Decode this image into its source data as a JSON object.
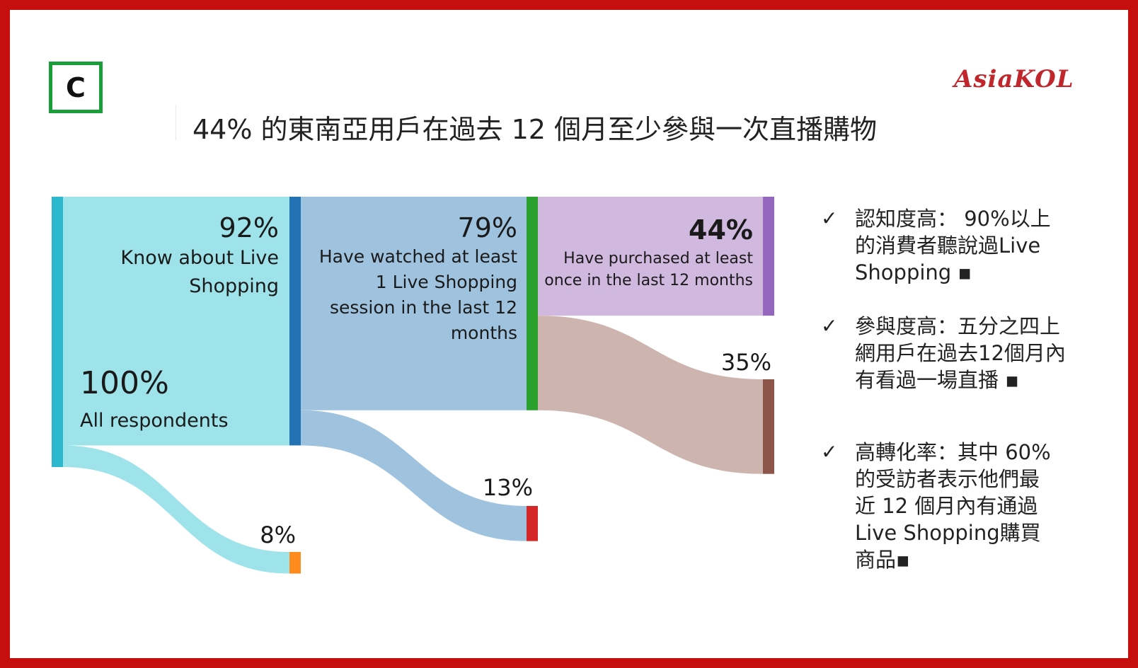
{
  "panel_label": "C",
  "logo_text": "AsiaKOL",
  "title": "44% 的東南亞用戶在過去 12 個月至少參與一次直播購物",
  "colors": {
    "frame": "#c50f0f",
    "logo": "#c0272d",
    "label_border": "#1a9e3a"
  },
  "chart_data": {
    "type": "sankey",
    "title": "44% 的東南亞用戶在過去 12 個月至少參與一次直播購物",
    "nodes": [
      {
        "id": "all",
        "percent": "100%",
        "label": "All respondents",
        "value": 100,
        "color": "#2bb8cf"
      },
      {
        "id": "know",
        "percent": "92%",
        "label": "Know about Live Shopping",
        "value": 92,
        "color": "#2272b4"
      },
      {
        "id": "not_know",
        "percent": "8%",
        "label": "",
        "value": 8,
        "color": "#ff8a1e"
      },
      {
        "id": "watched",
        "percent": "79%",
        "label": "Have watched at least 1 Live Shopping session in the last 12 months",
        "value": 79,
        "color": "#2ca02c"
      },
      {
        "id": "not_watched",
        "percent": "13%",
        "label": "",
        "value": 13,
        "color": "#d62728"
      },
      {
        "id": "purchased",
        "percent": "44%",
        "label": "Have purchased at least once in the last 12 months",
        "value": 44,
        "color": "#9467bd"
      },
      {
        "id": "not_purchased",
        "percent": "35%",
        "label": "",
        "value": 35,
        "color": "#8c564b"
      }
    ],
    "links": [
      {
        "source": "all",
        "target": "know",
        "value": 92,
        "color": "#9ee3ea"
      },
      {
        "source": "all",
        "target": "not_know",
        "value": 8,
        "color": "#9ee3ea"
      },
      {
        "source": "know",
        "target": "watched",
        "value": 79,
        "color": "#9fc3de"
      },
      {
        "source": "know",
        "target": "not_watched",
        "value": 13,
        "color": "#9fc3de"
      },
      {
        "source": "watched",
        "target": "purchased",
        "value": 44,
        "color": "#d0b8df"
      },
      {
        "source": "watched",
        "target": "not_purchased",
        "value": 35,
        "color": "#cdb4ae"
      }
    ],
    "lines": {
      "know": [
        "Know about Live",
        "Shopping"
      ],
      "watched": [
        "Have watched at least",
        "1 Live Shopping",
        "session in the last 12",
        "months"
      ],
      "purchased": [
        "Have purchased at least",
        "once in the last 12 months"
      ],
      "all": [
        "All respondents"
      ]
    }
  },
  "notes": [
    {
      "check": "✓",
      "lines": [
        "認知度高： 90%以上",
        "的消費者聽說過Live",
        "Shopping ▪"
      ]
    },
    {
      "check": "✓",
      "lines": [
        "參與度高：五分之四上",
        "網用戶在過去12個月內",
        "有看過一場直播 ▪"
      ]
    },
    {
      "check": "✓",
      "lines": [
        "高轉化率：其中 60%",
        "的受訪者表示他們最",
        "近 12 個月內有通過",
        "Live Shopping購買",
        "商品▪"
      ]
    }
  ]
}
